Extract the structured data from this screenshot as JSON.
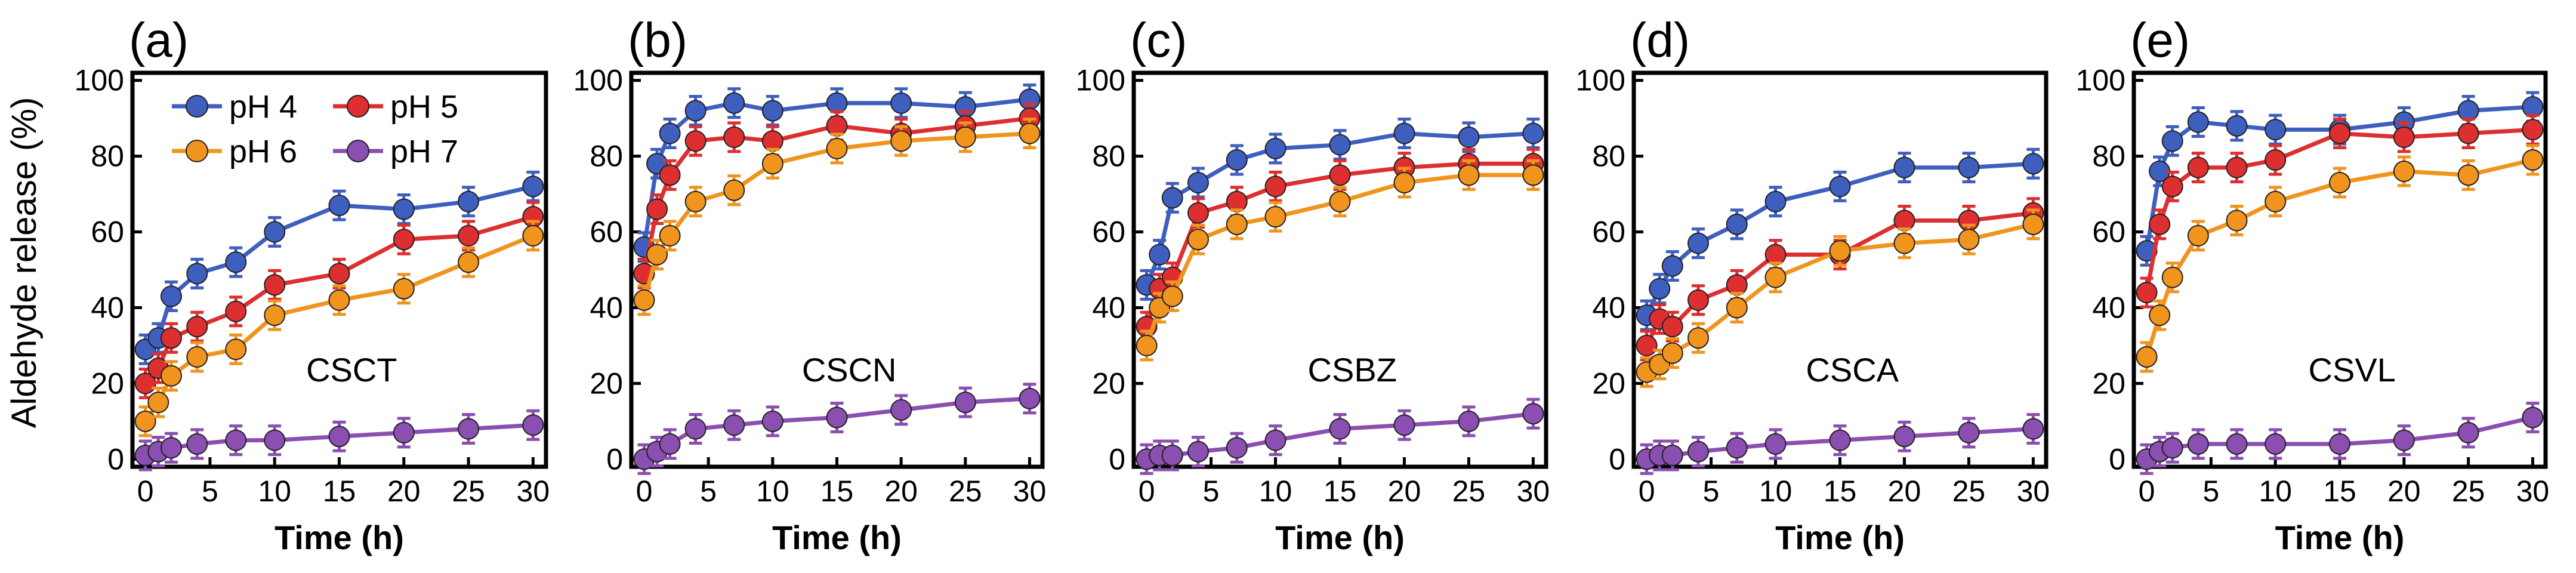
{
  "ylabel": "Aldehyde release (%)",
  "legend": [
    {
      "name": "pH 4",
      "color": "#3f5fbf"
    },
    {
      "name": "pH 5",
      "color": "#dd2f2f"
    },
    {
      "name": "pH 6",
      "color": "#f0941e"
    },
    {
      "name": "pH 7",
      "color": "#8a4fb0"
    }
  ],
  "chart_data": [
    {
      "type": "line",
      "panel": "(a)",
      "title": "CSCT",
      "xlabel": "Time (h)",
      "xlim": [
        -1,
        31
      ],
      "ylim": [
        -2,
        102
      ],
      "xticks": [
        0,
        5,
        10,
        15,
        20,
        25,
        30
      ],
      "yticks": [
        0,
        20,
        40,
        60,
        80,
        100
      ],
      "series": [
        {
          "name": "pH 4",
          "x": [
            0,
            1,
            2,
            4,
            7,
            10,
            15,
            20,
            25,
            30
          ],
          "y": [
            29,
            32,
            43,
            49,
            52,
            60,
            67,
            66,
            68,
            72
          ]
        },
        {
          "name": "pH 5",
          "x": [
            0,
            1,
            2,
            4,
            7,
            10,
            15,
            20,
            25,
            30
          ],
          "y": [
            20,
            24,
            32,
            35,
            39,
            46,
            49,
            58,
            59,
            64
          ]
        },
        {
          "name": "pH 6",
          "x": [
            0,
            1,
            2,
            4,
            7,
            10,
            15,
            20,
            25,
            30
          ],
          "y": [
            10,
            15,
            22,
            27,
            29,
            38,
            42,
            45,
            52,
            59
          ]
        },
        {
          "name": "pH 7",
          "x": [
            0,
            1,
            2,
            4,
            7,
            10,
            15,
            20,
            25,
            30
          ],
          "y": [
            1,
            2,
            3,
            4,
            5,
            5,
            6,
            7,
            8,
            9
          ]
        }
      ]
    },
    {
      "type": "line",
      "panel": "(b)",
      "title": "CSCN",
      "xlabel": "Time (h)",
      "xlim": [
        -1,
        31
      ],
      "ylim": [
        -2,
        102
      ],
      "xticks": [
        0,
        5,
        10,
        15,
        20,
        25,
        30
      ],
      "yticks": [
        0,
        20,
        40,
        60,
        80,
        100
      ],
      "series": [
        {
          "name": "pH 4",
          "x": [
            0,
            1,
            2,
            4,
            7,
            10,
            15,
            20,
            25,
            30
          ],
          "y": [
            56,
            78,
            86,
            92,
            94,
            92,
            94,
            94,
            93,
            95
          ]
        },
        {
          "name": "pH 5",
          "x": [
            0,
            1,
            2,
            4,
            7,
            10,
            15,
            20,
            25,
            30
          ],
          "y": [
            49,
            66,
            75,
            84,
            85,
            84,
            88,
            86,
            88,
            90
          ]
        },
        {
          "name": "pH 6",
          "x": [
            0,
            1,
            2,
            4,
            7,
            10,
            15,
            20,
            25,
            30
          ],
          "y": [
            42,
            54,
            59,
            68,
            71,
            78,
            82,
            84,
            85,
            86
          ]
        },
        {
          "name": "pH 7",
          "x": [
            0,
            1,
            2,
            4,
            7,
            10,
            15,
            20,
            25,
            30
          ],
          "y": [
            0,
            2,
            4,
            8,
            9,
            10,
            11,
            13,
            15,
            16
          ]
        }
      ]
    },
    {
      "type": "line",
      "panel": "(c)",
      "title": "CSBZ",
      "xlabel": "Time (h)",
      "xlim": [
        -1,
        31
      ],
      "ylim": [
        -2,
        102
      ],
      "xticks": [
        0,
        5,
        10,
        15,
        20,
        25,
        30
      ],
      "yticks": [
        0,
        20,
        40,
        60,
        80,
        100
      ],
      "series": [
        {
          "name": "pH 4",
          "x": [
            0,
            1,
            2,
            4,
            7,
            10,
            15,
            20,
            25,
            30
          ],
          "y": [
            46,
            54,
            69,
            73,
            79,
            82,
            83,
            86,
            85,
            86
          ]
        },
        {
          "name": "pH 5",
          "x": [
            0,
            1,
            2,
            4,
            7,
            10,
            15,
            20,
            25,
            30
          ],
          "y": [
            35,
            45,
            48,
            65,
            68,
            72,
            75,
            77,
            78,
            78
          ]
        },
        {
          "name": "pH 6",
          "x": [
            0,
            1,
            2,
            4,
            7,
            10,
            15,
            20,
            25,
            30
          ],
          "y": [
            30,
            40,
            43,
            58,
            62,
            64,
            68,
            73,
            75,
            75
          ]
        },
        {
          "name": "pH 7",
          "x": [
            0,
            1,
            2,
            4,
            7,
            10,
            15,
            20,
            25,
            30
          ],
          "y": [
            0,
            1,
            1,
            2,
            3,
            5,
            8,
            9,
            10,
            12
          ]
        }
      ]
    },
    {
      "type": "line",
      "panel": "(d)",
      "title": "CSCA",
      "xlabel": "Time (h)",
      "xlim": [
        -1,
        31
      ],
      "ylim": [
        -2,
        102
      ],
      "xticks": [
        0,
        5,
        10,
        15,
        20,
        25,
        30
      ],
      "yticks": [
        0,
        20,
        40,
        60,
        80,
        100
      ],
      "series": [
        {
          "name": "pH 4",
          "x": [
            0,
            1,
            2,
            4,
            7,
            10,
            15,
            20,
            25,
            30
          ],
          "y": [
            38,
            45,
            51,
            57,
            62,
            68,
            72,
            77,
            77,
            78
          ]
        },
        {
          "name": "pH 5",
          "x": [
            0,
            1,
            2,
            4,
            7,
            10,
            15,
            20,
            25,
            30
          ],
          "y": [
            30,
            37,
            35,
            42,
            46,
            54,
            54,
            63,
            63,
            65
          ]
        },
        {
          "name": "pH 6",
          "x": [
            0,
            1,
            2,
            4,
            7,
            10,
            15,
            20,
            25,
            30
          ],
          "y": [
            23,
            25,
            28,
            32,
            40,
            48,
            55,
            57,
            58,
            62
          ]
        },
        {
          "name": "pH 7",
          "x": [
            0,
            1,
            2,
            4,
            7,
            10,
            15,
            20,
            25,
            30
          ],
          "y": [
            0,
            1,
            1,
            2,
            3,
            4,
            5,
            6,
            7,
            8
          ]
        }
      ]
    },
    {
      "type": "line",
      "panel": "(e)",
      "title": "CSVL",
      "xlabel": "Time (h)",
      "xlim": [
        -1,
        31
      ],
      "ylim": [
        -2,
        102
      ],
      "xticks": [
        0,
        5,
        10,
        15,
        20,
        25,
        30
      ],
      "yticks": [
        0,
        20,
        40,
        60,
        80,
        100
      ],
      "series": [
        {
          "name": "pH 4",
          "x": [
            0,
            1,
            2,
            4,
            7,
            10,
            15,
            20,
            25,
            30
          ],
          "y": [
            55,
            76,
            84,
            89,
            88,
            87,
            87,
            89,
            92,
            93
          ]
        },
        {
          "name": "pH 5",
          "x": [
            0,
            1,
            2,
            4,
            7,
            10,
            15,
            20,
            25,
            30
          ],
          "y": [
            44,
            62,
            72,
            77,
            77,
            79,
            86,
            85,
            86,
            87
          ]
        },
        {
          "name": "pH 6",
          "x": [
            0,
            1,
            2,
            4,
            7,
            10,
            15,
            20,
            25,
            30
          ],
          "y": [
            27,
            38,
            48,
            59,
            63,
            68,
            73,
            76,
            75,
            79
          ]
        },
        {
          "name": "pH 7",
          "x": [
            0,
            1,
            2,
            4,
            7,
            10,
            15,
            20,
            25,
            30
          ],
          "y": [
            0,
            2,
            3,
            4,
            4,
            4,
            4,
            5,
            7,
            11
          ]
        }
      ]
    }
  ]
}
